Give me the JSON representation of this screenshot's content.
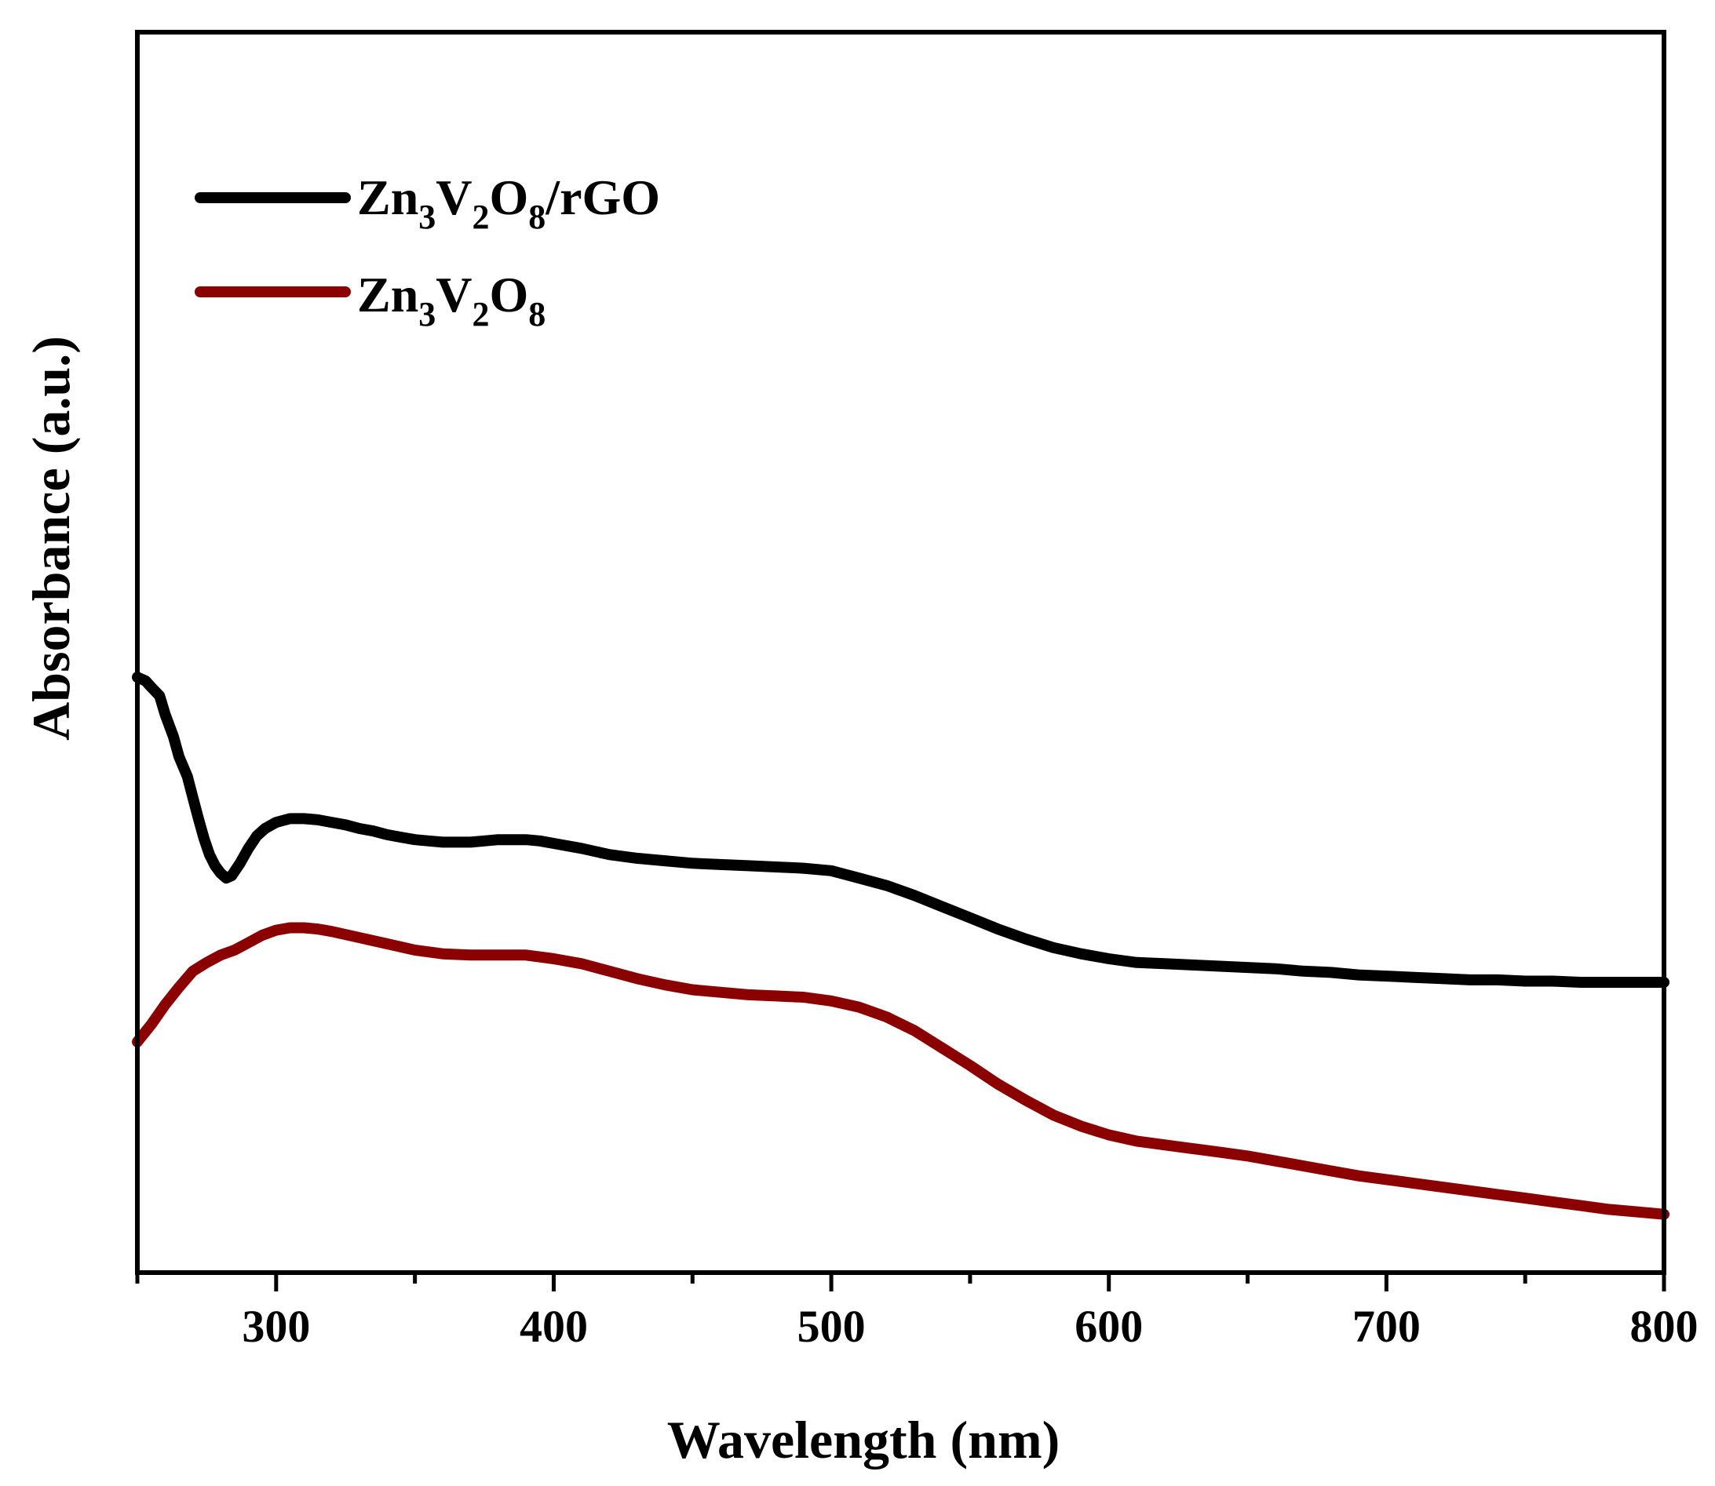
{
  "chart_data": {
    "type": "line",
    "xlabel": "Wavelength (nm)",
    "ylabel": "Absorbance (a.u.)",
    "xlim": [
      250,
      800
    ],
    "ylim": [
      0,
      1
    ],
    "x_ticks": [
      300,
      400,
      500,
      600,
      700,
      800
    ],
    "x_ticks_minor": [
      250,
      350,
      450,
      550,
      650,
      750
    ],
    "y_ticks": [],
    "grid": false,
    "legend_position": "top-left",
    "series": [
      {
        "name": "Zn3V2O8/rGO",
        "legend": {
          "prefix": "Zn",
          "sub1": "3",
          "mid1": "V",
          "sub2": "2",
          "mid2": "O",
          "sub3": "8",
          "suffix": "/rGO"
        },
        "color": "#000000",
        "points": [
          [
            250,
            0.48
          ],
          [
            253,
            0.477
          ],
          [
            255,
            0.472
          ],
          [
            258,
            0.465
          ],
          [
            260,
            0.45
          ],
          [
            263,
            0.432
          ],
          [
            265,
            0.416
          ],
          [
            268,
            0.4
          ],
          [
            270,
            0.383
          ],
          [
            272,
            0.366
          ],
          [
            274,
            0.35
          ],
          [
            276,
            0.337
          ],
          [
            278,
            0.328
          ],
          [
            280,
            0.322
          ],
          [
            282,
            0.318
          ],
          [
            284,
            0.32
          ],
          [
            287,
            0.33
          ],
          [
            290,
            0.342
          ],
          [
            293,
            0.352
          ],
          [
            296,
            0.358
          ],
          [
            300,
            0.363
          ],
          [
            305,
            0.366
          ],
          [
            310,
            0.366
          ],
          [
            315,
            0.365
          ],
          [
            320,
            0.363
          ],
          [
            325,
            0.361
          ],
          [
            330,
            0.358
          ],
          [
            335,
            0.356
          ],
          [
            340,
            0.353
          ],
          [
            345,
            0.351
          ],
          [
            350,
            0.349
          ],
          [
            355,
            0.348
          ],
          [
            360,
            0.347
          ],
          [
            365,
            0.347
          ],
          [
            370,
            0.347
          ],
          [
            375,
            0.348
          ],
          [
            380,
            0.349
          ],
          [
            385,
            0.349
          ],
          [
            390,
            0.349
          ],
          [
            395,
            0.348
          ],
          [
            400,
            0.346
          ],
          [
            410,
            0.342
          ],
          [
            420,
            0.337
          ],
          [
            430,
            0.334
          ],
          [
            440,
            0.332
          ],
          [
            450,
            0.33
          ],
          [
            460,
            0.329
          ],
          [
            470,
            0.328
          ],
          [
            480,
            0.327
          ],
          [
            490,
            0.326
          ],
          [
            500,
            0.324
          ],
          [
            505,
            0.321
          ],
          [
            510,
            0.318
          ],
          [
            520,
            0.312
          ],
          [
            530,
            0.304
          ],
          [
            540,
            0.295
          ],
          [
            550,
            0.286
          ],
          [
            560,
            0.277
          ],
          [
            570,
            0.269
          ],
          [
            580,
            0.262
          ],
          [
            590,
            0.257
          ],
          [
            600,
            0.253
          ],
          [
            610,
            0.25
          ],
          [
            620,
            0.249
          ],
          [
            630,
            0.248
          ],
          [
            640,
            0.247
          ],
          [
            650,
            0.246
          ],
          [
            660,
            0.245
          ],
          [
            670,
            0.243
          ],
          [
            680,
            0.242
          ],
          [
            690,
            0.24
          ],
          [
            700,
            0.239
          ],
          [
            710,
            0.238
          ],
          [
            720,
            0.237
          ],
          [
            730,
            0.236
          ],
          [
            740,
            0.236
          ],
          [
            750,
            0.235
          ],
          [
            760,
            0.235
          ],
          [
            770,
            0.234
          ],
          [
            780,
            0.234
          ],
          [
            790,
            0.234
          ],
          [
            800,
            0.234
          ]
        ]
      },
      {
        "name": "Zn3V2O8",
        "legend": {
          "prefix": "Zn",
          "sub1": "3",
          "mid1": "V",
          "sub2": "2",
          "mid2": "O",
          "sub3": "8",
          "suffix": ""
        },
        "color": "#8b0000",
        "points": [
          [
            250,
            0.186
          ],
          [
            255,
            0.2
          ],
          [
            260,
            0.216
          ],
          [
            265,
            0.23
          ],
          [
            270,
            0.243
          ],
          [
            275,
            0.25
          ],
          [
            280,
            0.256
          ],
          [
            285,
            0.26
          ],
          [
            290,
            0.266
          ],
          [
            295,
            0.272
          ],
          [
            300,
            0.276
          ],
          [
            305,
            0.278
          ],
          [
            310,
            0.278
          ],
          [
            315,
            0.277
          ],
          [
            320,
            0.275
          ],
          [
            330,
            0.27
          ],
          [
            340,
            0.265
          ],
          [
            350,
            0.26
          ],
          [
            360,
            0.257
          ],
          [
            370,
            0.256
          ],
          [
            380,
            0.256
          ],
          [
            390,
            0.256
          ],
          [
            400,
            0.253
          ],
          [
            410,
            0.249
          ],
          [
            420,
            0.243
          ],
          [
            430,
            0.237
          ],
          [
            440,
            0.232
          ],
          [
            450,
            0.228
          ],
          [
            460,
            0.226
          ],
          [
            470,
            0.224
          ],
          [
            480,
            0.223
          ],
          [
            490,
            0.222
          ],
          [
            500,
            0.219
          ],
          [
            510,
            0.214
          ],
          [
            520,
            0.206
          ],
          [
            530,
            0.195
          ],
          [
            540,
            0.181
          ],
          [
            550,
            0.167
          ],
          [
            560,
            0.152
          ],
          [
            570,
            0.139
          ],
          [
            580,
            0.127
          ],
          [
            590,
            0.118
          ],
          [
            600,
            0.111
          ],
          [
            610,
            0.106
          ],
          [
            620,
            0.103
          ],
          [
            630,
            0.1
          ],
          [
            640,
            0.097
          ],
          [
            650,
            0.094
          ],
          [
            660,
            0.09
          ],
          [
            670,
            0.086
          ],
          [
            680,
            0.082
          ],
          [
            690,
            0.078
          ],
          [
            700,
            0.075
          ],
          [
            710,
            0.072
          ],
          [
            720,
            0.069
          ],
          [
            730,
            0.066
          ],
          [
            740,
            0.063
          ],
          [
            750,
            0.06
          ],
          [
            760,
            0.057
          ],
          [
            770,
            0.054
          ],
          [
            780,
            0.051
          ],
          [
            790,
            0.049
          ],
          [
            800,
            0.047
          ]
        ]
      }
    ]
  }
}
